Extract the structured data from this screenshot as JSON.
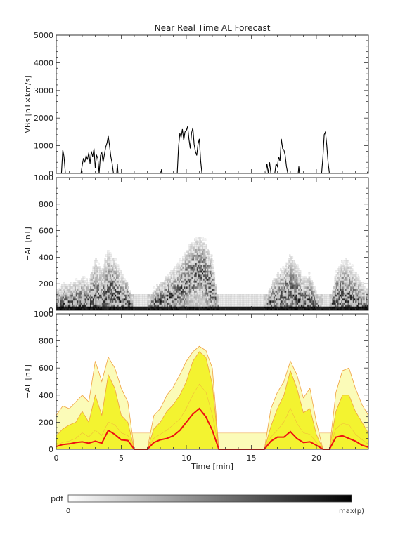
{
  "title": "Near Real Time AL Forecast",
  "chart_data": [
    {
      "panel": "vbs",
      "type": "line",
      "ylabel": "VBs [nT×km/s]",
      "ylim": [
        0,
        5000
      ],
      "yticks": [
        0,
        1000,
        2000,
        3000,
        4000,
        5000
      ],
      "xlim": [
        0,
        24
      ],
      "series": [
        {
          "color": "#000000",
          "points": [
            [
              0,
              0
            ],
            [
              0.4,
              0
            ],
            [
              0.5,
              850
            ],
            [
              0.6,
              600
            ],
            [
              0.7,
              0
            ],
            [
              1.6,
              0
            ],
            [
              1.9,
              0
            ],
            [
              2.0,
              300
            ],
            [
              2.1,
              550
            ],
            [
              2.2,
              400
            ],
            [
              2.3,
              650
            ],
            [
              2.4,
              500
            ],
            [
              2.5,
              750
            ],
            [
              2.6,
              350
            ],
            [
              2.7,
              800
            ],
            [
              2.8,
              600
            ],
            [
              2.9,
              900
            ],
            [
              3.0,
              200
            ],
            [
              3.1,
              650
            ],
            [
              3.2,
              550
            ],
            [
              3.3,
              0
            ],
            [
              3.4,
              650
            ],
            [
              3.5,
              750
            ],
            [
              3.6,
              400
            ],
            [
              3.8,
              950
            ],
            [
              3.9,
              1100
            ],
            [
              4.0,
              1350
            ],
            [
              4.1,
              1000
            ],
            [
              4.2,
              600
            ],
            [
              4.3,
              350
            ],
            [
              4.4,
              0
            ],
            [
              4.65,
              0
            ],
            [
              4.7,
              350
            ],
            [
              4.75,
              0
            ],
            [
              8.05,
              0
            ],
            [
              8.1,
              150
            ],
            [
              8.15,
              0
            ],
            [
              9.3,
              0
            ],
            [
              9.4,
              950
            ],
            [
              9.5,
              1450
            ],
            [
              9.6,
              1300
            ],
            [
              9.7,
              1600
            ],
            [
              9.8,
              1200
            ],
            [
              9.9,
              1500
            ],
            [
              10.0,
              1550
            ],
            [
              10.1,
              1700
            ],
            [
              10.2,
              1250
            ],
            [
              10.3,
              900
            ],
            [
              10.4,
              1450
            ],
            [
              10.5,
              1650
            ],
            [
              10.6,
              1050
            ],
            [
              10.7,
              800
            ],
            [
              10.8,
              650
            ],
            [
              10.9,
              1050
            ],
            [
              11.0,
              1250
            ],
            [
              11.1,
              450
            ],
            [
              11.2,
              0
            ],
            [
              16.1,
              0
            ],
            [
              16.2,
              350
            ],
            [
              16.3,
              0
            ],
            [
              16.4,
              400
            ],
            [
              16.5,
              0
            ],
            [
              16.8,
              0
            ],
            [
              16.9,
              350
            ],
            [
              17.0,
              250
            ],
            [
              17.1,
              600
            ],
            [
              17.2,
              450
            ],
            [
              17.3,
              1250
            ],
            [
              17.4,
              900
            ],
            [
              17.5,
              850
            ],
            [
              17.6,
              650
            ],
            [
              17.7,
              250
            ],
            [
              17.8,
              0
            ],
            [
              18.6,
              0
            ],
            [
              18.65,
              250
            ],
            [
              18.7,
              0
            ],
            [
              20.4,
              0
            ],
            [
              20.5,
              600
            ],
            [
              20.6,
              1400
            ],
            [
              20.7,
              1500
            ],
            [
              20.8,
              1000
            ],
            [
              20.9,
              400
            ],
            [
              21.0,
              0
            ],
            [
              23.9,
              0
            ],
            [
              24,
              100
            ]
          ]
        }
      ]
    },
    {
      "panel": "pdf",
      "type": "heatmap",
      "ylabel": "−AL [nT]",
      "ylim": [
        0,
        1000
      ],
      "yticks": [
        0,
        200,
        400,
        600,
        800,
        1000
      ],
      "xlim": [
        0,
        24
      ],
      "colorscale": [
        "#ffffff",
        "#000000"
      ]
    },
    {
      "panel": "forecast",
      "type": "area",
      "ylabel": "−AL [nT]",
      "xlabel": "Time [min]",
      "ylim": [
        0,
        1000
      ],
      "yticks": [
        0,
        200,
        400,
        600,
        800,
        1000
      ],
      "xlim": [
        0,
        24
      ],
      "xticks": [
        0,
        5,
        10,
        15,
        20
      ],
      "colors": {
        "median": "#ee1111",
        "band": "#f3f330",
        "outer": "#fbfbb8",
        "edge": "#f0a040"
      },
      "x": [
        0,
        0.5,
        1,
        1.5,
        2,
        2.5,
        3,
        3.5,
        4,
        4.5,
        5,
        5.5,
        6,
        6.5,
        7,
        7.5,
        8,
        8.5,
        9,
        9.5,
        10,
        10.5,
        11,
        11.5,
        12,
        12.5,
        13,
        13.5,
        14,
        14.5,
        15,
        15.5,
        16,
        16.5,
        17,
        17.5,
        18,
        18.5,
        19,
        19.5,
        20,
        20.5,
        21,
        21.5,
        22,
        22.5,
        23,
        23.5,
        24
      ],
      "median": [
        20,
        35,
        40,
        50,
        55,
        45,
        60,
        45,
        140,
        110,
        70,
        65,
        0,
        0,
        0,
        50,
        70,
        80,
        100,
        140,
        200,
        260,
        300,
        240,
        140,
        0,
        0,
        0,
        0,
        0,
        0,
        0,
        0,
        60,
        90,
        90,
        130,
        80,
        50,
        55,
        30,
        0,
        0,
        90,
        100,
        80,
        60,
        30,
        15
      ],
      "q_lo": [
        30,
        50,
        60,
        80,
        120,
        90,
        140,
        100,
        200,
        180,
        120,
        100,
        0,
        0,
        0,
        80,
        110,
        140,
        180,
        220,
        300,
        400,
        480,
        420,
        250,
        0,
        0,
        0,
        0,
        0,
        0,
        0,
        0,
        90,
        140,
        200,
        300,
        190,
        120,
        110,
        50,
        0,
        0,
        150,
        190,
        180,
        110,
        70,
        40
      ],
      "q_hi": [
        100,
        150,
        180,
        200,
        280,
        200,
        400,
        250,
        550,
        450,
        250,
        200,
        0,
        0,
        0,
        150,
        200,
        280,
        330,
        400,
        500,
        650,
        720,
        680,
        480,
        0,
        0,
        0,
        0,
        0,
        0,
        0,
        0,
        170,
        300,
        400,
        580,
        450,
        270,
        300,
        110,
        0,
        0,
        280,
        400,
        400,
        280,
        200,
        120
      ],
      "q_max": [
        250,
        320,
        300,
        350,
        400,
        350,
        650,
        500,
        680,
        600,
        450,
        350,
        0,
        0,
        0,
        250,
        300,
        400,
        460,
        550,
        650,
        720,
        760,
        730,
        600,
        0,
        0,
        0,
        0,
        0,
        0,
        0,
        0,
        300,
        420,
        500,
        650,
        550,
        380,
        450,
        200,
        0,
        0,
        420,
        580,
        600,
        450,
        330,
        250
      ],
      "floor_band": [
        0,
        120
      ]
    }
  ],
  "colorbar": {
    "label": "pdf",
    "min_label": "0",
    "max_label": "max(p)"
  }
}
